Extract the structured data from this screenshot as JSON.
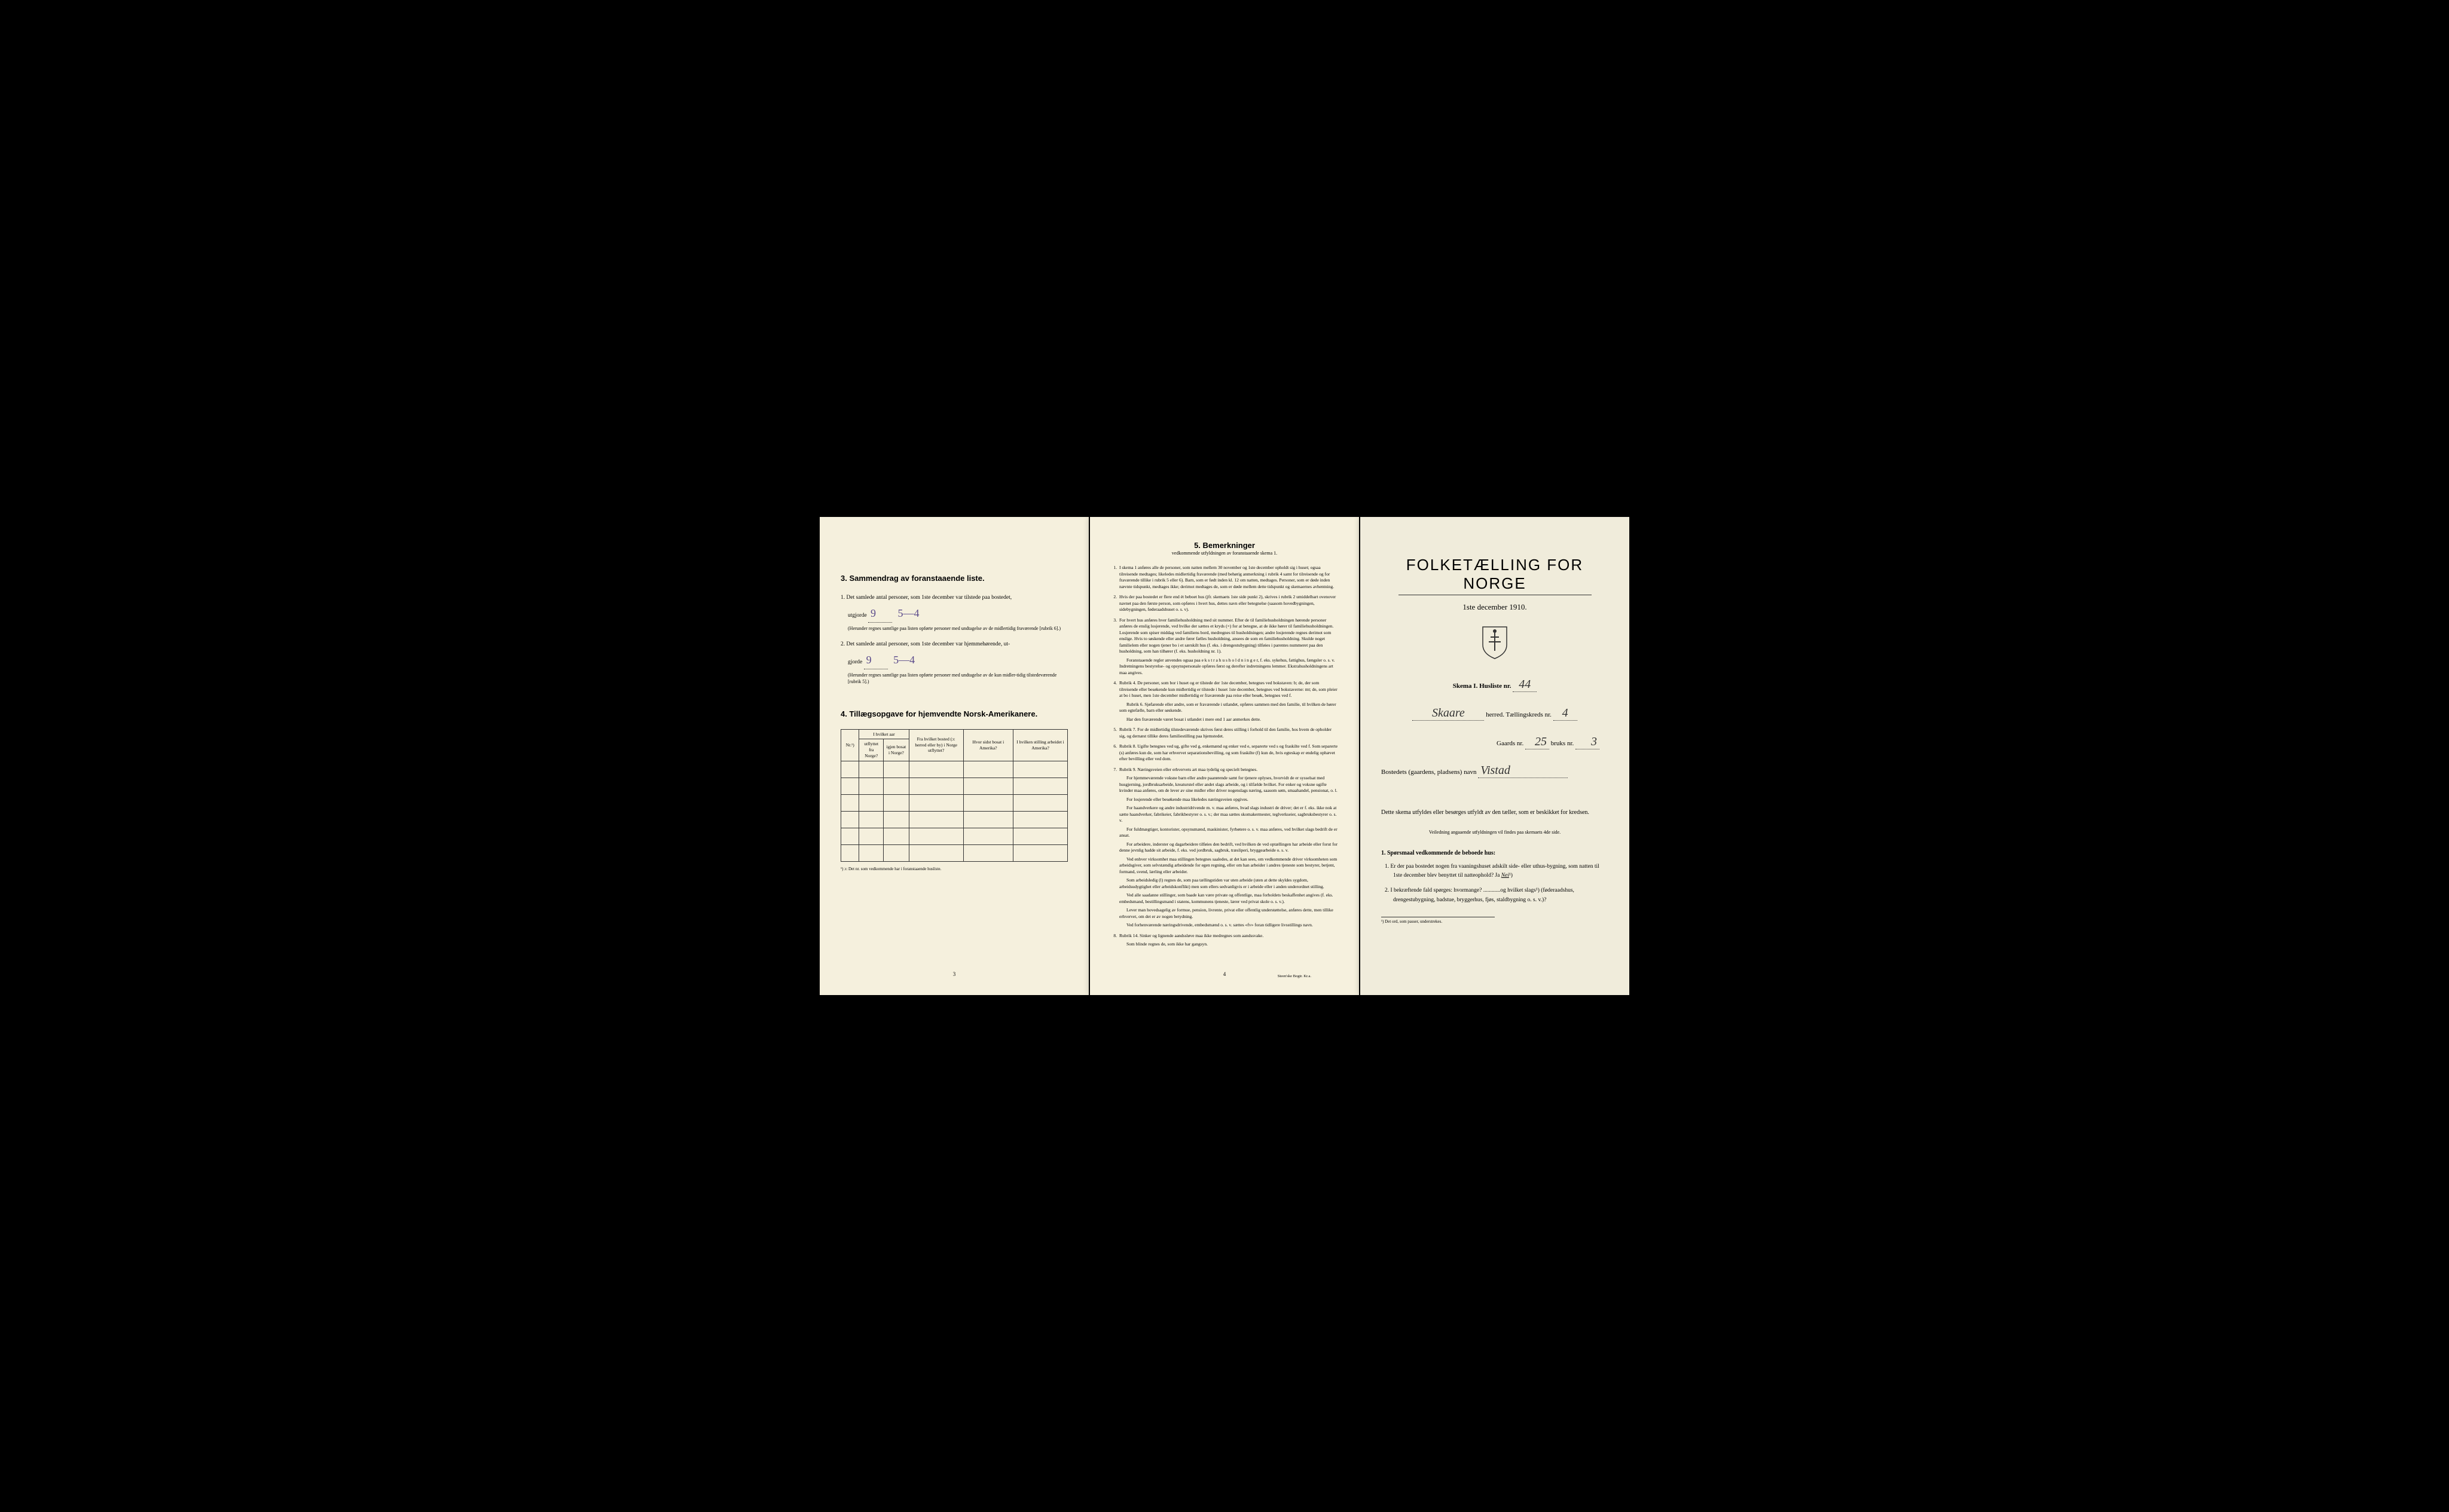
{
  "page1": {
    "section3_header": "3.  Sammendrag av foranstaaende liste.",
    "item1_text": "1. Det samlede antal personer, som 1ste december var tilstede paa bostedet,",
    "item1_line2a": "utgjorde",
    "item1_handwritten1": "9",
    "item1_handwritten2": "5—4",
    "item1_fine": "(Herunder regnes samtlige paa listen opførte personer med undtagelse av de midlertidig fraværende [rubrik 6].)",
    "item2_text": "2. Det samlede antal personer, som 1ste december var hjemmehørende, ut-",
    "item2_line2a": "gjorde",
    "item2_handwritten1": "9",
    "item2_handwritten2": "5—4",
    "item2_fine": "(Herunder regnes samtlige paa listen opførte personer med undtagelse av de kun midler-tidig tilstedeværende [rubrik 5].)",
    "section4_header": "4.  Tillægsopgave for hjemvendte Norsk-Amerikanere.",
    "table_headers": {
      "col1": "Nr.¹)",
      "col2_top": "I hvilket aar",
      "col2a": "utflyttet fra Norge?",
      "col2b": "igjen bosat i Norge?",
      "col3": "Fra hvilket bosted (ɔ: herred eller by) i Norge utflyttet?",
      "col4": "Hvor sidst bosat i Amerika?",
      "col5": "I hvilken stilling arbeidet i Amerika?"
    },
    "footnote": "¹) ɔ: Det nr. som vedkommende har i foranstaaende husliste.",
    "page_num": "3"
  },
  "page2": {
    "header": "5.  Bemerkninger",
    "subheader": "vedkommende utfyldningen av foranstaaende skema 1.",
    "items": [
      {
        "num": "1.",
        "text": "I skema 1 anføres alle de personer, som natten mellem 30 november og 1ste december opholdt sig i huset; ogsaa tilreisende medtages; likeledes midlertidig fraværende (med behørig anmerkning i rubrik 4 samt for tilreisende og for fraværende tillike i rubrik 5 eller 6). Barn, som er født inden kl. 12 om natten, medtages. Personer, som er døde inden nævnte tidspunkt, medtages ikke; derimot medtages de, som er døde mellem dette tidspunkt og skemaernes avhentning."
      },
      {
        "num": "2.",
        "text": "Hvis der paa bostedet er flere end ét beboet hus (jfr. skemaets 1ste side punkt 2), skrives i rubrik 2 umiddelbart ovenover navnet paa den første person, som opføres i hvert hus, dettes navn eller betegnelse (saasom hovedbygningen, sidebygningen, føderaadshuset o. s. v)."
      },
      {
        "num": "3.",
        "text": "For hvert hus anføres hver familiehusholdning med sit nummer. Efter de til familiehusholdningen hørende personer anføres de enslig losjerende, ved hvilke der sættes et kryds (×) for at betegne, at de ikke hører til familiehusholdningen. Losjerende som spiser middag ved familiens bord, medregnes til husholdningen; andre losjerende regnes derimot som enslige. Hvis to søskende eller andre fører fælles husholdning, ansees de som en familiehusholdning. Skulde noget familielem eller nogen tjener bo i et særskilt hus (f. eks. i drengestubygning) tilføies i parentes nummeret paa den husholdning, som han tilhører (f. eks. husholdning nr. 1).",
        "paras": [
          "Foranstaaende regler anvendes ogsaa paa e k s t r a h u s h o l d n i n g e r, f. eks. sykehus, fattighus, fængsler o. s. v. Indretningens bestyrelse- og opsynspersonale opføres først og derefter indretningens lemmer. Ekstrahusholdningens art maa angives."
        ]
      },
      {
        "num": "4.",
        "text": "Rubrik 4. De personer, som bor i huset og er tilstede der 1ste december, betegnes ved bokstaven: b; de, der som tilreisende eller besøkende kun midlertidig er tilstede i huset 1ste december, betegnes ved bokstaverne: mt; de, som pleier at bo i huset, men 1ste december midlertidig er fraværende paa reise eller besøk, betegnes ved f.",
        "paras": [
          "Rubrik 6. Sjøfarende eller andre, som er fraværende i utlandet, opføres sammen med den familie, til hvilken de hører som egtefælle, barn eller søskende.",
          "Har den fraværende været bosat i utlandet i mere end 1 aar anmerkes dette."
        ]
      },
      {
        "num": "5.",
        "text": "Rubrik 7. For de midlertidig tilstedeværende skrives først deres stilling i forhold til den familie, hos hvem de opholder sig, og dernæst tillike deres familiestilling paa hjemstedet."
      },
      {
        "num": "6.",
        "text": "Rubrik 8. Ugifte betegnes ved ug, gifte ved g, enkemænd og enker ved e, separerte ved s og fraskilte ved f. Som separerte (s) anføres kun de, som har erhvervet separationsbevilling, og som fraskilte (f) kun de, hvis egteskap er endelig ophævet efter bevilling eller ved dom."
      },
      {
        "num": "7.",
        "text": "Rubrik 9. Næringsveien eller erhvervets art maa tydelig og specielt betegnes.",
        "paras": [
          "For hjemmeværende voksne barn eller andre paarørende samt for tjenere oplyses, hvorvidt de er sysselsat med husgjerning, jordbruksarbeide, kreaturstel eller andet slags arbeide, og i tilfælde hvilket. For enker og voksne ugifte kvinder maa anføres, om de lever av sine midler eller driver nogenslags næring, saasom søm, smaahandel, pensionat, o. l.",
          "For losjerende eller besøkende maa likeledes næringsveien opgives.",
          "For haandverkere og andre industridrivende m. v. maa anføres, hvad slags industri de driver; det er f. eks. ikke nok at sætte haandverker, fabrikeier, fabrikbestyrer o. s. v.; der maa sættes skomakermester, teglverkseier, sagbruksbestyrer o. s. v.",
          "For fuldmægtiger, kontorister, opsynsmænd, maskinister, fyrbøtere o. s. v. maa anføres, ved hvilket slags bedrift de er ansat.",
          "For arbeidere, inderster og dagarbeidere tilføies den bedrift, ved hvilken de ved optællingen har arbeide eller forut for denne jevnlig hadde sit arbeide, f. eks. ved jordbruk, sagbruk, træsliperi, bryggearbeide o. s. v.",
          "Ved enhver virksomhet maa stillingen betegnes saaledes, at det kan sees, om vedkommende driver virksomheten som arbeidsgiver, som selvstændig arbeidende for egen regning, eller om han arbeider i andres tjeneste som bestyrer, betjent, formand, svend, lærling eller arbeider.",
          "Som arbeidsledig (l) regnes de, som paa tællingstiden var uten arbeide (uten at dette skyldes sygdom, arbeidsudygtighet eller arbeidskonflikt) men som ellers sedvanligvis er i arbeide eller i anden underordnet stilling.",
          "Ved alle saadanne stillinger, som baade kan være private og offentlige, maa forholdets beskaffenhet angives (f. eks. embedsmand, bestillingsmand i statens, kommunens tjeneste, lærer ved privat skole o. s. v.).",
          "Lever man hovedsagelig av formue, pension, livrente, privat eller offentlig understøttelse, anføres dette, men tillike erhvervet, om det er av nogen betydning.",
          "Ved forhenværende næringsdrivende, embedsmænd o. s. v. sættes «fv» foran tidligere livsstillings navn."
        ]
      },
      {
        "num": "8.",
        "text": "Rubrik 14. Sinker og lignende aandssløve maa ikke medregnes som aandssvake.",
        "paras": [
          "Som blinde regnes de, som ikke har gangsyn."
        ]
      }
    ],
    "page_num": "4",
    "printer": "Steen'ske Bogtr. Kr.a."
  },
  "page3": {
    "main_title": "FOLKETÆLLING FOR NORGE",
    "date": "1ste december 1910.",
    "skema_label": "Skema I.  Husliste nr.",
    "skema_value": "44",
    "herred_label": "herred.  Tællingskreds nr.",
    "herred_name": "Skaare",
    "kreds_value": "4",
    "gaards_label": "Gaards nr.",
    "gaards_value": "25",
    "bruks_label": "bruks nr.",
    "bruks_value": "3",
    "bosted_label": "Bostedets (gaardens, pladsens) navn",
    "bosted_value": "Vistad",
    "instruction": "Dette skema utfyldes eller besørges utfyldt av den tæller, som er beskikket for kredsen.",
    "instruction_note": "Veiledning angaaende utfyldningen vil findes paa skemaets 4de side.",
    "q_header": "1. Spørsmaal vedkommende de beboede hus:",
    "q1": "1. Er der paa bostedet nogen fra vaaningshuset adskilt side- eller uthus-bygning, som natten til 1ste december blev benyttet til natteophold?   Ja   ",
    "q1_answer": "Nei",
    "q2": "2. I bekræftende fald spørges: hvormange? ............og hvilket slags¹) (føderaadshus, drengestubygning, badstue, bryggerhus, fjøs, staldbygning o. s. v.)?",
    "bottom_footnote": "¹) Det ord, som passer, understrekes."
  },
  "colors": {
    "page_bg": "#f4efdc",
    "text": "#1a1a1a",
    "handwriting": "#5a4a8a",
    "black_border": "#000000"
  }
}
